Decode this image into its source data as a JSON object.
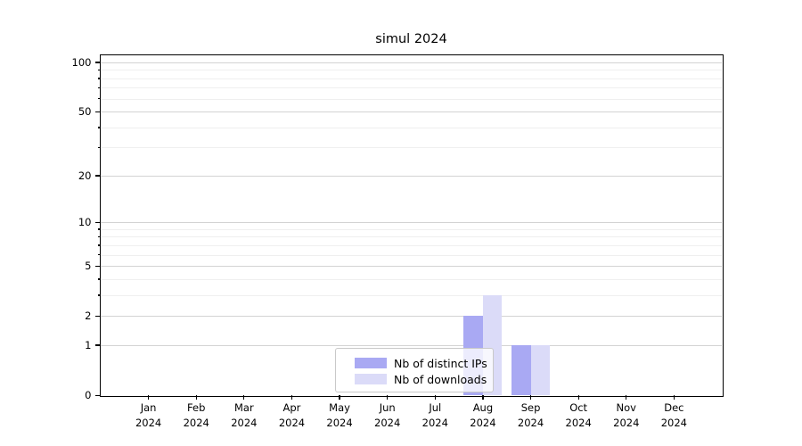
{
  "title": "simul 2024",
  "colors": {
    "distinct_ips": "#a9a9f3",
    "downloads": "#dbdbf8",
    "axis": "#000000",
    "grid_major": "#d3d3d3",
    "grid_minor": "#efefef",
    "legend_border": "#c9c9c9"
  },
  "legend": {
    "items": [
      {
        "label": "Nb of distinct IPs",
        "color": "#a9a9f3"
      },
      {
        "label": "Nb of downloads",
        "color": "#dbdbf8"
      }
    ]
  },
  "chart_data": {
    "type": "bar",
    "title": "simul 2024",
    "scale": "log1p",
    "categories": [
      "Jan",
      "Feb",
      "Mar",
      "Apr",
      "May",
      "Jun",
      "Jul",
      "Aug",
      "Sep",
      "Oct",
      "Nov",
      "Dec"
    ],
    "year_label": "2024",
    "series": [
      {
        "name": "Nb of distinct IPs",
        "color": "#a9a9f3",
        "values": [
          0,
          0,
          0,
          0,
          0,
          0,
          0,
          2,
          1,
          0,
          0,
          0
        ]
      },
      {
        "name": "Nb of downloads",
        "color": "#dbdbf8",
        "values": [
          0,
          0,
          0,
          0,
          0,
          0,
          0,
          3,
          1,
          0,
          0,
          0
        ]
      }
    ],
    "y_major_ticks": [
      0,
      1,
      2,
      5,
      10,
      20,
      50,
      100
    ],
    "y_minor_ticks": [
      3,
      4,
      6,
      7,
      8,
      9,
      30,
      40,
      60,
      70,
      80,
      90
    ],
    "ylim": [
      0,
      110.5
    ],
    "xlabel": "",
    "ylabel": "",
    "grid": true,
    "legend_position": "lower center"
  }
}
